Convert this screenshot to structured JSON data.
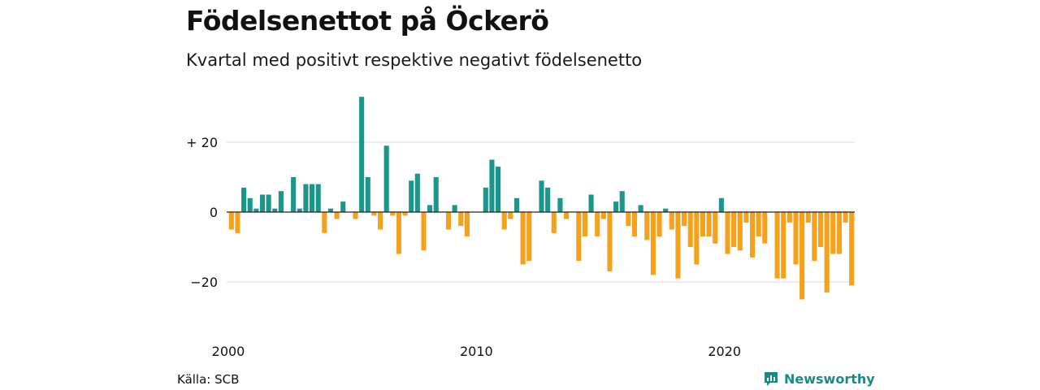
{
  "header": {
    "title": "Födelsenettot på Öckerö",
    "subtitle": "Kvartal med positivt respektive negativt födelsenetto"
  },
  "footer": {
    "source": "Källa: SCB",
    "brand": "Newsworthy",
    "brand_icon": "chart-bubble-icon"
  },
  "colors": {
    "positive": "#1b968a",
    "negative": "#f4a11d",
    "grid": "#d9d9d9",
    "axis": "#222222"
  },
  "chart_data": {
    "type": "bar",
    "x_start": "2000 Q1",
    "y_ticks": [
      {
        "value": 20,
        "label": "+ 20"
      },
      {
        "value": 0,
        "label": "0"
      },
      {
        "value": -20,
        "label": "−20"
      }
    ],
    "x_ticks": [
      {
        "label": "2000",
        "index": 0
      },
      {
        "label": "2010",
        "index": 40
      },
      {
        "label": "2020",
        "index": 80
      }
    ],
    "ylim": [
      -31,
      34
    ],
    "values": [
      -5,
      -6,
      7,
      4,
      1,
      5,
      5,
      1,
      6,
      0,
      10,
      1,
      8,
      8,
      8,
      -6,
      1,
      -2,
      3,
      0,
      -2,
      33,
      10,
      -1,
      -5,
      19,
      -1,
      -12,
      -1,
      9,
      11,
      -11,
      2,
      10,
      0,
      -5,
      2,
      -4,
      -7,
      0,
      0,
      7,
      15,
      13,
      -5,
      -2,
      4,
      -15,
      -14,
      0,
      9,
      7,
      -6,
      4,
      -2,
      0,
      -14,
      -7,
      5,
      -7,
      -2,
      -17,
      3,
      6,
      -4,
      -7,
      2,
      -8,
      -18,
      -7,
      1,
      -5,
      -19,
      -4,
      -10,
      -15,
      -7,
      -7,
      -9,
      4,
      -12,
      -10,
      -11,
      -3,
      -13,
      -7,
      -9,
      0,
      -19,
      -19,
      -3,
      -15,
      -25,
      -3,
      -14,
      -10,
      -23,
      -12,
      -12,
      -3,
      -21
    ]
  }
}
